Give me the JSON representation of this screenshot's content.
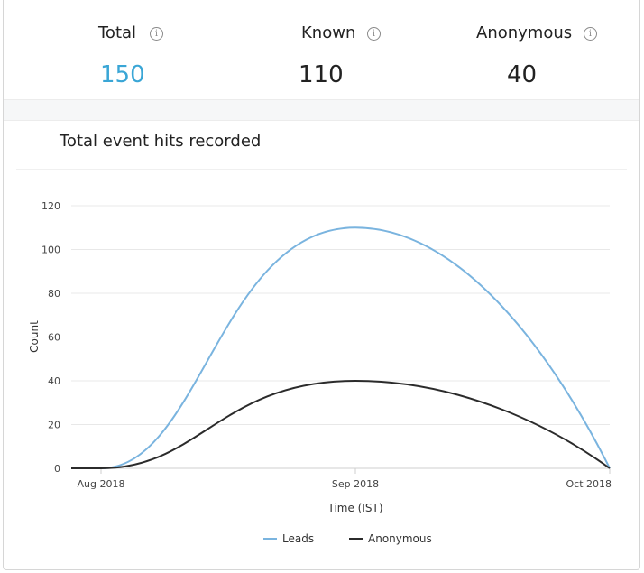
{
  "stats": {
    "total": {
      "label": "Total",
      "value": "150",
      "color": "#3aa6d6"
    },
    "known": {
      "label": "Known",
      "value": "110"
    },
    "anonymous": {
      "label": "Anonymous",
      "value": "40"
    },
    "info_icon": "info-icon"
  },
  "chart": {
    "title": "Total event hits recorded"
  },
  "chart_data": {
    "type": "line",
    "title": "Total event hits recorded",
    "xlabel": "Time (IST)",
    "ylabel": "Count",
    "x_ticks": [
      "Aug 2018",
      "Sep 2018",
      "Oct 2018"
    ],
    "ylim": [
      0,
      120
    ],
    "y_ticks": [
      0,
      20,
      40,
      60,
      80,
      100,
      120
    ],
    "grid": true,
    "legend_position": "bottom",
    "series": [
      {
        "name": "Leads",
        "color": "#7ab4df",
        "x": [
          "Aug 2018",
          "Sep 2018",
          "Oct 2018"
        ],
        "values": [
          0,
          110,
          0
        ]
      },
      {
        "name": "Anonymous",
        "color": "#2b2b2b",
        "x": [
          "Aug 2018",
          "Sep 2018",
          "Oct 2018"
        ],
        "values": [
          0,
          40,
          0
        ]
      }
    ]
  }
}
